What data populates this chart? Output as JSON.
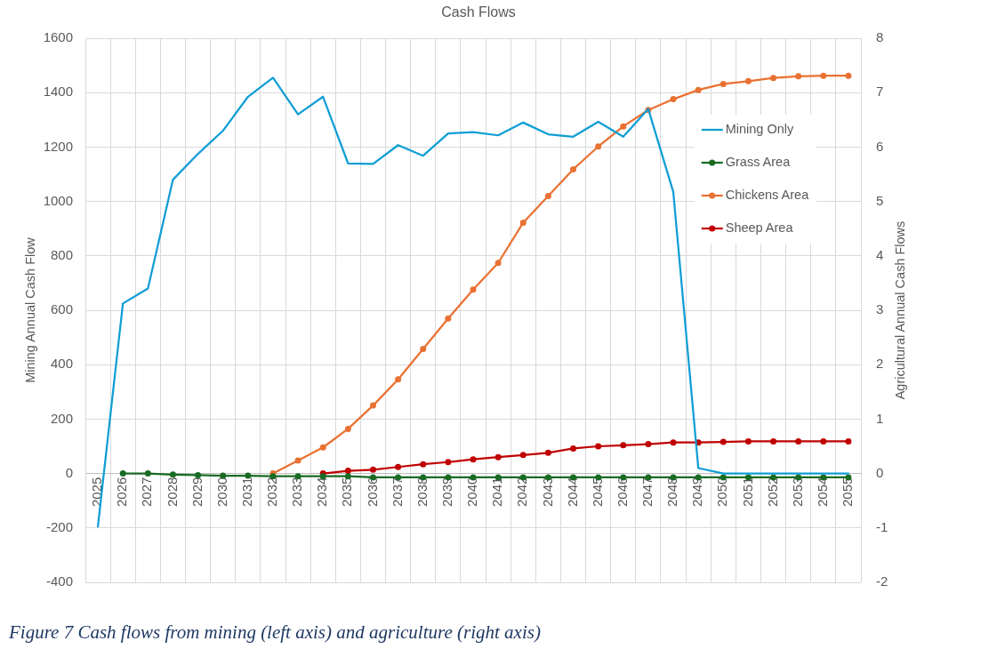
{
  "chart_data": {
    "type": "line",
    "title": "Cash Flows",
    "ylabel": "Mining Annual Cash Flow",
    "y2label": "Agricultural Annual Cash Flows",
    "annotations": [
      "Figure 7 Cash flows from mining (left axis) and agriculture (right axis)"
    ],
    "categories": [
      "2025",
      "2026",
      "2027",
      "2028",
      "2029",
      "2030",
      "2031",
      "2032",
      "2033",
      "2034",
      "2035",
      "2036",
      "2037",
      "2038",
      "2039",
      "2040",
      "2041",
      "2042",
      "2043",
      "2044",
      "2045",
      "2046",
      "2047",
      "2048",
      "2049",
      "2050",
      "2051",
      "2052",
      "2053",
      "2054",
      "2055"
    ],
    "ylim": [
      -400,
      1600
    ],
    "yticks": [
      -400,
      -200,
      0,
      200,
      400,
      600,
      800,
      1000,
      1200,
      1400,
      1600
    ],
    "y2lim": [
      -2,
      8
    ],
    "y2ticks": [
      -2,
      -1,
      0,
      1,
      2,
      3,
      4,
      5,
      6,
      7,
      8
    ],
    "grid": true,
    "legend": "top right",
    "marker": "circle",
    "line_style": "solid",
    "series": [
      {
        "name": "Mining Only",
        "color": "#0f9ed5",
        "marker": "none",
        "values": [
          -195,
          625,
          680,
          1080,
          1175,
          1260,
          1385,
          1455,
          1320,
          1385,
          1140,
          1138,
          1207,
          1168,
          1250,
          1255,
          1243,
          1290,
          1247,
          1238,
          1293,
          1238,
          1340,
          1035,
          20,
          0,
          0,
          0,
          0,
          0,
          0
        ]
      },
      {
        "name": "Grass Area",
        "color": "#196b24",
        "axis": "y2",
        "values": [
          null,
          0,
          0,
          -0.02,
          -0.03,
          -0.04,
          -0.04,
          -0.05,
          -0.05,
          -0.05,
          -0.05,
          -0.07,
          -0.07,
          -0.07,
          -0.07,
          -0.07,
          -0.07,
          -0.07,
          -0.07,
          -0.07,
          -0.07,
          -0.07,
          -0.07,
          -0.07,
          -0.07,
          -0.07,
          -0.07,
          -0.07,
          -0.07,
          -0.07,
          -0.07
        ]
      },
      {
        "name": "Chickens Area",
        "color": "#e97132",
        "axis": "y2",
        "values": [
          null,
          null,
          null,
          null,
          null,
          null,
          null,
          0,
          0.24,
          0.48,
          0.82,
          1.25,
          1.73,
          2.29,
          2.85,
          3.38,
          3.87,
          4.61,
          5.1,
          5.59,
          6.01,
          6.38,
          6.68,
          6.88,
          7.05,
          7.16,
          7.21,
          7.27,
          7.3,
          7.31,
          7.31
        ]
      },
      {
        "name": "Sheep Area",
        "color": "#c00000",
        "axis": "y2",
        "values": [
          null,
          null,
          null,
          null,
          null,
          null,
          null,
          null,
          null,
          0,
          0.05,
          0.07,
          0.12,
          0.17,
          0.21,
          0.26,
          0.3,
          0.34,
          0.38,
          0.46,
          0.5,
          0.52,
          0.54,
          0.57,
          0.57,
          0.58,
          0.59,
          0.59,
          0.59,
          0.59,
          0.59
        ]
      }
    ]
  }
}
